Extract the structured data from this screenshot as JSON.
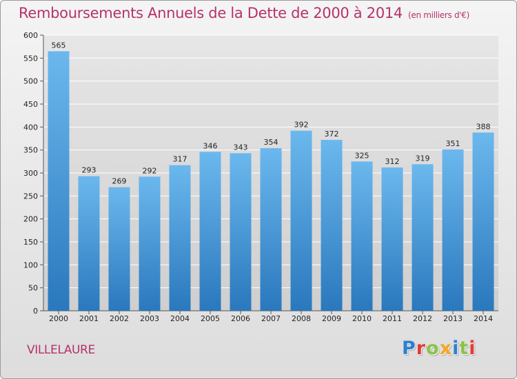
{
  "header": {
    "title": "Remboursements Annuels de la Dette de 2000 à 2014",
    "unit": "(en milliers d'€)"
  },
  "footer": {
    "commune": "VILLELAURE",
    "logo_text": "Proxiti"
  },
  "colors": {
    "title": "#b5326a",
    "bar_top": "#6bb8ee",
    "bar_bottom": "#2a78bd"
  },
  "chart_data": {
    "type": "bar",
    "title": "Remboursements Annuels de la Dette de 2000 à 2014",
    "subtitle": "(en milliers d'€)",
    "xlabel": "",
    "ylabel": "",
    "categories": [
      "2000",
      "2001",
      "2002",
      "2003",
      "2004",
      "2005",
      "2006",
      "2007",
      "2008",
      "2009",
      "2010",
      "2011",
      "2012",
      "2013",
      "2014"
    ],
    "values": [
      565,
      293,
      269,
      292,
      317,
      346,
      343,
      354,
      392,
      372,
      325,
      312,
      319,
      351,
      388
    ],
    "ylim": [
      0,
      600
    ],
    "yticks": [
      0,
      50,
      100,
      150,
      200,
      250,
      300,
      350,
      400,
      450,
      500,
      550,
      600
    ],
    "grid": true,
    "data_labels": true
  }
}
